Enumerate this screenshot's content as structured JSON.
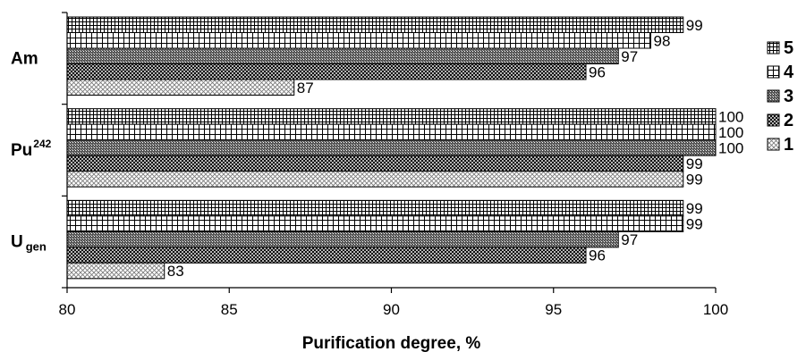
{
  "chart_data": {
    "type": "bar",
    "orientation": "horizontal",
    "title": "",
    "xlabel": "Purification degree, %",
    "ylabel": "",
    "xlim": [
      80,
      100
    ],
    "xticks": [
      80,
      85,
      90,
      95,
      100
    ],
    "grid": false,
    "legend_position": "right",
    "categories": [
      {
        "base": "Am",
        "sup": "",
        "sub": ""
      },
      {
        "base": "Pu",
        "sup": "242",
        "sub": ""
      },
      {
        "base": "U",
        "sup": "",
        "sub": "gen"
      }
    ],
    "series": [
      {
        "name": "5",
        "pattern": "grid",
        "values": [
          99,
          100,
          99
        ]
      },
      {
        "name": "4",
        "pattern": "squares-white",
        "values": [
          98,
          100,
          99
        ]
      },
      {
        "name": "3",
        "pattern": "dense",
        "values": [
          97,
          100,
          97
        ]
      },
      {
        "name": "2",
        "pattern": "cross-hatch",
        "values": [
          96,
          99,
          96
        ]
      },
      {
        "name": "1",
        "pattern": "light-diag",
        "values": [
          87,
          99,
          83
        ]
      }
    ],
    "data_labels": [
      [
        "99",
        "98",
        "97",
        "96",
        "87"
      ],
      [
        "100",
        "100",
        "100",
        "99",
        "99"
      ],
      [
        "99",
        "99",
        "97",
        "96",
        "83"
      ]
    ]
  }
}
